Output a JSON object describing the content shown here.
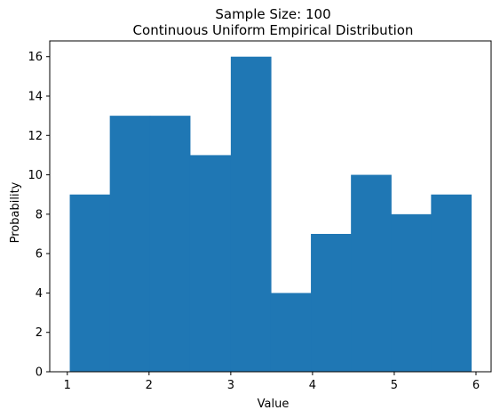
{
  "chart_data": {
    "type": "bar",
    "title": "Sample Size: 100",
    "subtitle": "Continuous Uniform Empirical Distribution",
    "xlabel": "Value",
    "ylabel": "Probability",
    "bin_edges": [
      1.03,
      1.52,
      2.01,
      2.5,
      3.0,
      3.49,
      3.98,
      4.47,
      4.96,
      5.45,
      5.94
    ],
    "values": [
      9,
      13,
      13,
      11,
      16,
      4,
      7,
      10,
      8,
      9
    ],
    "xlim": [
      0.785,
      6.185
    ],
    "ylim": [
      0,
      16.8
    ],
    "xticks": [
      1,
      2,
      3,
      4,
      5,
      6
    ],
    "yticks": [
      0,
      2,
      4,
      6,
      8,
      10,
      12,
      14,
      16
    ],
    "bar_color": "#1f77b4",
    "grid": false
  }
}
